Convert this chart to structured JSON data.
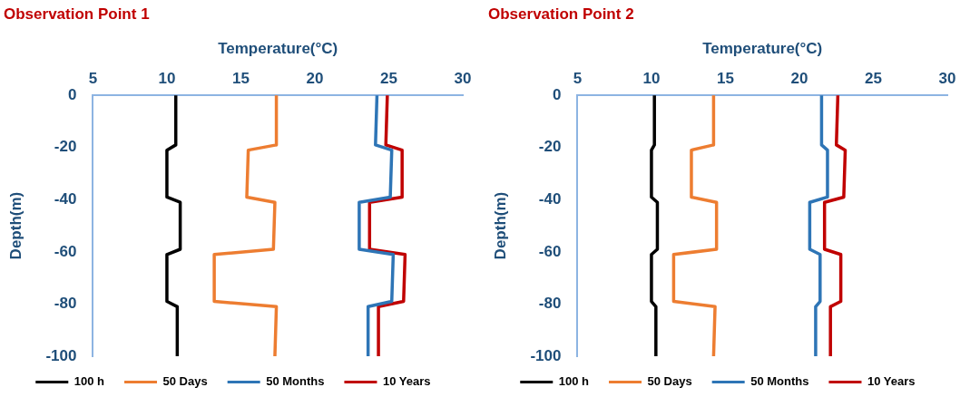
{
  "chart_data": [
    {
      "type": "line",
      "title": "Observation Point 1",
      "xlabel": "Temperature(°C)",
      "ylabel": "Depth(m)",
      "xlim": [
        5,
        30
      ],
      "xticks": [
        5,
        10,
        15,
        20,
        25,
        30
      ],
      "ylim": [
        -100,
        0
      ],
      "yticks": [
        0,
        -20,
        -40,
        -60,
        -80,
        -100
      ],
      "grid": false,
      "legend": "bottom",
      "marker": "none",
      "line_style": "solid",
      "series": [
        {
          "name": "100 h",
          "color": "#000000",
          "x": [
            10.6,
            10.6,
            10.0,
            10.0,
            10.9,
            10.9,
            10.0,
            10.0,
            10.7,
            10.7
          ],
          "values": [
            0,
            -19,
            -21,
            -39,
            -41,
            -59,
            -61,
            -79,
            -81,
            -100
          ]
        },
        {
          "name": "50 Days",
          "color": "#ed7d31",
          "x": [
            17.4,
            17.4,
            15.5,
            15.4,
            17.3,
            17.2,
            13.2,
            13.2,
            17.4,
            17.3
          ],
          "values": [
            0,
            -19,
            -21,
            -39,
            -41,
            -59,
            -61,
            -79,
            -81,
            -100
          ]
        },
        {
          "name": "50 Months",
          "color": "#2e75b6",
          "x": [
            24.2,
            24.1,
            25.2,
            25.1,
            23.0,
            23.0,
            25.3,
            25.2,
            23.6,
            23.6
          ],
          "values": [
            0,
            -19,
            -21,
            -39,
            -41,
            -59,
            -61,
            -79,
            -81,
            -100
          ]
        },
        {
          "name": "10 Years",
          "color": "#c00000",
          "x": [
            24.9,
            24.8,
            25.9,
            25.9,
            23.7,
            23.7,
            26.1,
            26.0,
            24.3,
            24.3
          ],
          "values": [
            0,
            -19,
            -21,
            -39,
            -41,
            -59,
            -61,
            -79,
            -81,
            -100
          ]
        }
      ]
    },
    {
      "type": "line",
      "title": "Observation Point 2",
      "xlabel": "Temperature(°C)",
      "ylabel": "Depth(m)",
      "xlim": [
        5,
        30
      ],
      "xticks": [
        5,
        10,
        15,
        20,
        25,
        30
      ],
      "ylim": [
        -100,
        0
      ],
      "yticks": [
        0,
        -20,
        -40,
        -60,
        -80,
        -100
      ],
      "grid": false,
      "legend": "bottom",
      "marker": "none",
      "line_style": "solid",
      "series": [
        {
          "name": "100 h",
          "color": "#000000",
          "x": [
            10.2,
            10.2,
            10.0,
            10.0,
            10.4,
            10.4,
            10.0,
            10.0,
            10.3,
            10.3
          ],
          "values": [
            0,
            -19,
            -21,
            -39,
            -41,
            -59,
            -61,
            -79,
            -81,
            -100
          ]
        },
        {
          "name": "50 Days",
          "color": "#ed7d31",
          "x": [
            14.2,
            14.2,
            12.7,
            12.7,
            14.4,
            14.4,
            11.5,
            11.5,
            14.3,
            14.2
          ],
          "values": [
            0,
            -19,
            -21,
            -39,
            -41,
            -59,
            -61,
            -79,
            -81,
            -100
          ]
        },
        {
          "name": "50 Months",
          "color": "#2e75b6",
          "x": [
            21.5,
            21.5,
            21.9,
            21.9,
            20.7,
            20.7,
            21.4,
            21.4,
            21.1,
            21.1
          ],
          "values": [
            0,
            -19,
            -21,
            -39,
            -41,
            -59,
            -61,
            -79,
            -81,
            -100
          ]
        },
        {
          "name": "10 Years",
          "color": "#c00000",
          "x": [
            22.6,
            22.5,
            23.1,
            23.0,
            21.7,
            21.7,
            22.8,
            22.8,
            22.1,
            22.1
          ],
          "values": [
            0,
            -19,
            -21,
            -39,
            -41,
            -59,
            -61,
            -79,
            -81,
            -100
          ]
        }
      ]
    }
  ]
}
